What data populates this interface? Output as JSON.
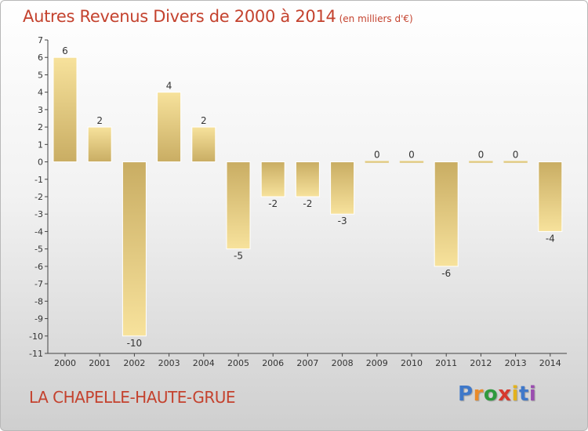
{
  "title": "Autres Revenus Divers de 2000 à 2014",
  "subtitle": "(en milliers d'€)",
  "commune": "LA CHAPELLE-HAUTE-GRUE",
  "logo": {
    "letters": [
      "P",
      "r",
      "o",
      "x",
      "i",
      "t",
      "i"
    ],
    "colors": [
      "#3f78c9",
      "#e98b2a",
      "#2f9a3e",
      "#d6392e",
      "#e3b21c",
      "#3f78c9",
      "#9b4db0"
    ]
  },
  "colors": {
    "bar_light": "#f7e29c",
    "bar_dark": "#c9ad63",
    "accent_text": "#c4422e"
  },
  "chart_data": {
    "type": "bar",
    "categories": [
      "2000",
      "2001",
      "2002",
      "2003",
      "2004",
      "2005",
      "2006",
      "2007",
      "2008",
      "2009",
      "2010",
      "2011",
      "2012",
      "2013",
      "2014"
    ],
    "values": [
      6,
      2,
      -10,
      4,
      2,
      -5,
      -2,
      -2,
      -3,
      0,
      0,
      -6,
      0,
      0,
      -4
    ],
    "data_labels": [
      "6",
      "2",
      "-10",
      "4",
      "2",
      "-5",
      "-2",
      "-2",
      "-3",
      "0",
      "0",
      "-6",
      "0",
      "0",
      "-4"
    ],
    "y_ticks": [
      7,
      6,
      5,
      4,
      3,
      2,
      1,
      0,
      -1,
      -2,
      -3,
      -4,
      -5,
      -6,
      -7,
      -8,
      -9,
      -10,
      -11
    ],
    "ylim": [
      -11,
      7
    ],
    "title": "Autres Revenus Divers de 2000 à 2014",
    "xlabel": "",
    "ylabel": "",
    "grid": false
  }
}
